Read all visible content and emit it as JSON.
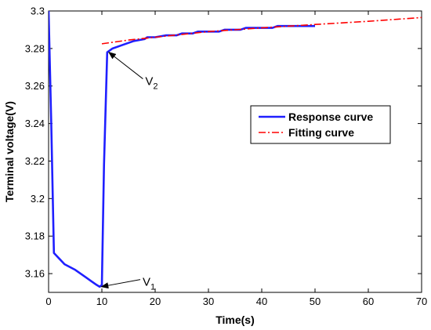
{
  "chart_data": {
    "type": "line",
    "title": "",
    "xlabel": "Time(s)",
    "ylabel": "Terminal voltage(V)",
    "xlim": [
      0,
      70
    ],
    "ylim": [
      3.15,
      3.3
    ],
    "xticks": [
      0,
      10,
      20,
      30,
      40,
      50,
      60,
      70
    ],
    "yticks": [
      3.16,
      3.18,
      3.2,
      3.22,
      3.24,
      3.26,
      3.28,
      3.3
    ],
    "xtick_labels": [
      "0",
      "10",
      "20",
      "30",
      "40",
      "50",
      "60",
      "70"
    ],
    "ytick_labels": [
      "3.16",
      "3.18",
      "3.2",
      "3.22",
      "3.24",
      "3.26",
      "3.28",
      "3.3"
    ],
    "grid": false,
    "legend_position": "right",
    "series": [
      {
        "name": "Response curve",
        "color": "#1f1fff",
        "style": "solid",
        "points": [
          [
            0,
            3.3
          ],
          [
            0.5,
            3.24
          ],
          [
            1,
            3.171
          ],
          [
            2,
            3.168
          ],
          [
            3,
            3.165
          ],
          [
            5,
            3.162
          ],
          [
            7,
            3.158
          ],
          [
            8,
            3.156
          ],
          [
            9,
            3.154
          ],
          [
            9.6,
            3.153
          ],
          [
            10,
            3.154
          ],
          [
            10.4,
            3.218
          ],
          [
            11,
            3.278
          ],
          [
            12,
            3.28
          ],
          [
            14,
            3.282
          ],
          [
            16,
            3.284
          ],
          [
            18,
            3.285
          ],
          [
            18.5,
            3.286
          ],
          [
            20,
            3.286
          ],
          [
            22,
            3.287
          ],
          [
            24,
            3.287
          ],
          [
            25,
            3.288
          ],
          [
            27,
            3.288
          ],
          [
            28,
            3.289
          ],
          [
            30,
            3.289
          ],
          [
            32,
            3.289
          ],
          [
            33,
            3.29
          ],
          [
            36,
            3.29
          ],
          [
            37,
            3.291
          ],
          [
            42,
            3.291
          ],
          [
            43,
            3.292
          ],
          [
            50,
            3.292
          ]
        ]
      },
      {
        "name": "Fitting curve",
        "color": "#ff0000",
        "style": "dashdot",
        "points": [
          [
            10,
            3.2825
          ],
          [
            15,
            3.2845
          ],
          [
            20,
            3.286
          ],
          [
            25,
            3.2875
          ],
          [
            30,
            3.289
          ],
          [
            40,
            3.291
          ],
          [
            50,
            3.2928
          ],
          [
            60,
            3.2945
          ],
          [
            70,
            3.2965
          ]
        ]
      }
    ],
    "annotations": [
      {
        "text": "V",
        "sub": "2",
        "target": [
          11,
          3.278
        ],
        "label_at": [
          18,
          3.263
        ]
      },
      {
        "text": "V",
        "sub": "1",
        "target": [
          9.6,
          3.153
        ],
        "label_at": [
          17.5,
          3.156
        ]
      }
    ]
  }
}
